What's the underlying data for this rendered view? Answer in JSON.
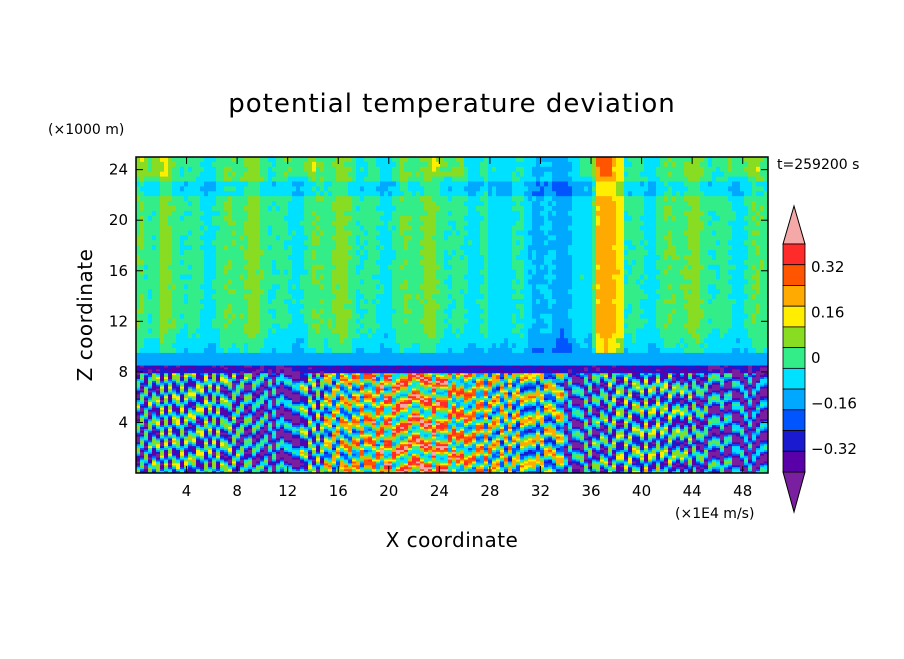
{
  "chart_data": {
    "type": "heatmap",
    "title": "potential temperature deviation",
    "xlabel": "X coordinate",
    "ylabel": "Z coordinate",
    "x_unit": "(×1E4 m/s)",
    "y_unit": "(×1000 m)",
    "time_label": "t=259200 s",
    "xlim": [
      0,
      50
    ],
    "ylim": [
      0,
      25
    ],
    "x_ticks": [
      4,
      8,
      12,
      16,
      20,
      24,
      28,
      32,
      36,
      40,
      44,
      48
    ],
    "y_ticks": [
      4,
      8,
      12,
      16,
      20,
      24
    ],
    "colorbar": {
      "levels": [
        -0.48,
        -0.4,
        -0.32,
        -0.24,
        -0.16,
        -0.08,
        0,
        0.08,
        0.16,
        0.24,
        0.32,
        0.4,
        0.48
      ],
      "labeled_ticks": [
        "0.32",
        "0.16",
        "0",
        "−0.16",
        "−0.32"
      ],
      "labeled_values": [
        0.32,
        0.16,
        0,
        -0.16,
        -0.32
      ],
      "colors": [
        "#7a1fa0",
        "#5a00a8",
        "#1a1ad0",
        "#0055ff",
        "#00a8ff",
        "#00e0ff",
        "#33ee88",
        "#88dd22",
        "#ffee00",
        "#ffaa00",
        "#ff5500",
        "#ff2a2a",
        "#f4a8a8"
      ],
      "extend": "both"
    },
    "grid": false,
    "bands": {
      "lower_turbulent_top_z": 8.5,
      "boundary_layer_z": [
        8.5,
        9.5
      ],
      "upper_field": "mostly 0 to +0.08 with vertical streaks"
    }
  }
}
